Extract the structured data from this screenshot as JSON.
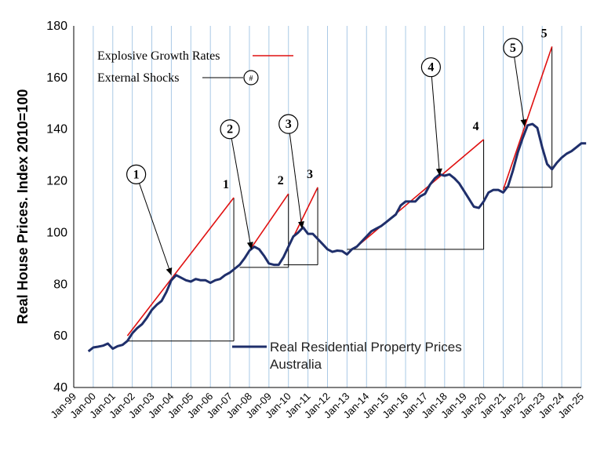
{
  "chart_data": {
    "type": "line",
    "ylabel": "Real House Prices. Index 2010=100",
    "ylim": [
      40,
      180
    ],
    "yticks": [
      "40",
      "60",
      "80",
      "100",
      "120",
      "140",
      "160",
      "180"
    ],
    "xticks": [
      "Jan-99",
      "Jan-00",
      "Jan-01",
      "Jan-02",
      "Jan-03",
      "Jan-04",
      "Jan-05",
      "Jan-06",
      "Jan-07",
      "Jan-08",
      "Jan-09",
      "Jan-10",
      "Jan-11",
      "Jan-12",
      "Jan-13",
      "Jan-14",
      "Jan-15",
      "Jan-16",
      "Jan-17",
      "Jan-18",
      "Jan-19",
      "Jan-20",
      "Jan-21",
      "Jan-22",
      "Jan-23",
      "Jan-24",
      "Jan-25"
    ],
    "grid": "vertical",
    "series": [
      {
        "name": "Real Residential Property Prices Australia",
        "color": "#1f2f6b",
        "points": [
          [
            1999.75,
            54.0
          ],
          [
            2000.0,
            55.5
          ],
          [
            2000.25,
            55.8
          ],
          [
            2000.5,
            56.2
          ],
          [
            2000.75,
            57.0
          ],
          [
            2001.0,
            55.0
          ],
          [
            2001.25,
            56.0
          ],
          [
            2001.5,
            56.5
          ],
          [
            2001.75,
            58.0
          ],
          [
            2002.0,
            61.0
          ],
          [
            2002.25,
            63.0
          ],
          [
            2002.5,
            64.5
          ],
          [
            2002.75,
            67.0
          ],
          [
            2003.0,
            70.0
          ],
          [
            2003.25,
            72.0
          ],
          [
            2003.5,
            73.5
          ],
          [
            2003.75,
            77.0
          ],
          [
            2004.0,
            81.5
          ],
          [
            2004.25,
            83.5
          ],
          [
            2004.5,
            82.5
          ],
          [
            2004.75,
            81.5
          ],
          [
            2005.0,
            81.0
          ],
          [
            2005.25,
            82.0
          ],
          [
            2005.5,
            81.5
          ],
          [
            2005.75,
            81.5
          ],
          [
            2006.0,
            80.5
          ],
          [
            2006.25,
            81.5
          ],
          [
            2006.5,
            82.0
          ],
          [
            2006.75,
            83.5
          ],
          [
            2007.0,
            84.5
          ],
          [
            2007.25,
            86.0
          ],
          [
            2007.5,
            87.5
          ],
          [
            2007.75,
            90.0
          ],
          [
            2008.0,
            93.0
          ],
          [
            2008.25,
            94.5
          ],
          [
            2008.5,
            93.5
          ],
          [
            2008.75,
            91.0
          ],
          [
            2009.0,
            88.0
          ],
          [
            2009.25,
            87.5
          ],
          [
            2009.5,
            87.5
          ],
          [
            2009.75,
            90.5
          ],
          [
            2010.0,
            94.5
          ],
          [
            2010.25,
            98.5
          ],
          [
            2010.5,
            100.0
          ],
          [
            2010.75,
            102.0
          ],
          [
            2011.0,
            99.5
          ],
          [
            2011.25,
            99.5
          ],
          [
            2011.5,
            97.5
          ],
          [
            2011.75,
            95.5
          ],
          [
            2012.0,
            93.5
          ],
          [
            2012.25,
            92.5
          ],
          [
            2012.5,
            93.0
          ],
          [
            2012.75,
            92.8
          ],
          [
            2013.0,
            91.5
          ],
          [
            2013.25,
            93.5
          ],
          [
            2013.5,
            94.5
          ],
          [
            2013.75,
            96.5
          ],
          [
            2014.0,
            98.5
          ],
          [
            2014.25,
            100.5
          ],
          [
            2014.5,
            101.5
          ],
          [
            2014.75,
            102.5
          ],
          [
            2015.0,
            104.0
          ],
          [
            2015.25,
            105.5
          ],
          [
            2015.5,
            107.0
          ],
          [
            2015.75,
            110.5
          ],
          [
            2016.0,
            112.0
          ],
          [
            2016.25,
            112.0
          ],
          [
            2016.5,
            112.0
          ],
          [
            2016.75,
            114.0
          ],
          [
            2017.0,
            115.0
          ],
          [
            2017.25,
            118.5
          ],
          [
            2017.5,
            121.0
          ],
          [
            2017.75,
            122.5
          ],
          [
            2018.0,
            122.0
          ],
          [
            2018.25,
            122.5
          ],
          [
            2018.5,
            121.0
          ],
          [
            2018.75,
            119.0
          ],
          [
            2019.0,
            116.0
          ],
          [
            2019.25,
            113.0
          ],
          [
            2019.5,
            110.0
          ],
          [
            2019.75,
            109.5
          ],
          [
            2020.0,
            112.0
          ],
          [
            2020.25,
            115.5
          ],
          [
            2020.5,
            116.5
          ],
          [
            2020.75,
            116.5
          ],
          [
            2021.0,
            115.5
          ],
          [
            2021.25,
            118.0
          ],
          [
            2021.5,
            124.0
          ],
          [
            2021.75,
            131.0
          ],
          [
            2022.0,
            136.5
          ],
          [
            2022.25,
            141.5
          ],
          [
            2022.5,
            142.0
          ],
          [
            2022.75,
            140.5
          ],
          [
            2023.0,
            133.0
          ],
          [
            2023.25,
            126.5
          ],
          [
            2023.5,
            124.5
          ],
          [
            2023.75,
            127.0
          ],
          [
            2024.0,
            129.0
          ],
          [
            2024.25,
            130.5
          ],
          [
            2024.5,
            131.5
          ],
          [
            2024.75,
            133.0
          ],
          [
            2025.0,
            134.5
          ],
          [
            2025.25,
            134.5
          ]
        ]
      }
    ],
    "growth_lines": [
      {
        "from": [
          2001.75,
          60.0
        ],
        "to": [
          2007.2,
          113.5
        ],
        "color": "#e01010"
      },
      {
        "from": [
          2007.5,
          87.5
        ],
        "to": [
          2010.0,
          115.0
        ],
        "color": "#e01010"
      },
      {
        "from": [
          2009.75,
          90.5
        ],
        "to": [
          2011.5,
          117.5
        ],
        "color": "#e01010"
      },
      {
        "from": [
          2013.5,
          94.5
        ],
        "to": [
          2020.0,
          136.0
        ],
        "color": "#e01010"
      },
      {
        "from": [
          2021.0,
          116.5
        ],
        "to": [
          2023.5,
          172.0
        ],
        "color": "#e01010"
      }
    ],
    "boxes": [
      {
        "x0": 2001.75,
        "x1": 2007.2,
        "ybase": 58.0,
        "ytop": 113.5,
        "label": "1"
      },
      {
        "x0": 2007.5,
        "x1": 2010.0,
        "ybase": 86.5,
        "ytop": 115.0,
        "label": "2"
      },
      {
        "x0": 2009.75,
        "x1": 2011.5,
        "ybase": 87.5,
        "ytop": 117.5,
        "label": "3"
      },
      {
        "x0": 2013.0,
        "x1": 2020.0,
        "ybase": 93.5,
        "ytop": 136.0,
        "label": "4"
      },
      {
        "x0": 2021.0,
        "x1": 2023.5,
        "ybase": 117.5,
        "ytop": 172.0,
        "label": "5"
      }
    ],
    "shocks": [
      {
        "label": "1",
        "circle": [
          2002.2,
          122.5
        ],
        "point": [
          2004.0,
          83.5
        ]
      },
      {
        "label": "2",
        "circle": [
          2007.0,
          140.0
        ],
        "point": [
          2008.1,
          93.5
        ]
      },
      {
        "label": "3",
        "circle": [
          2010.0,
          142.0
        ],
        "point": [
          2010.7,
          101.5
        ]
      },
      {
        "label": "4",
        "circle": [
          2017.3,
          164.0
        ],
        "point": [
          2017.75,
          122.0
        ]
      },
      {
        "label": "5",
        "circle": [
          2021.5,
          171.5
        ],
        "point": [
          2022.1,
          141.0
        ]
      }
    ],
    "legend": {
      "explosive_label": "Explosive Growth Rates",
      "shock_label": "External Shocks",
      "shock_symbol": "#",
      "series_label_line1": "Real Residential Property Prices",
      "series_label_line2": "Australia"
    }
  }
}
